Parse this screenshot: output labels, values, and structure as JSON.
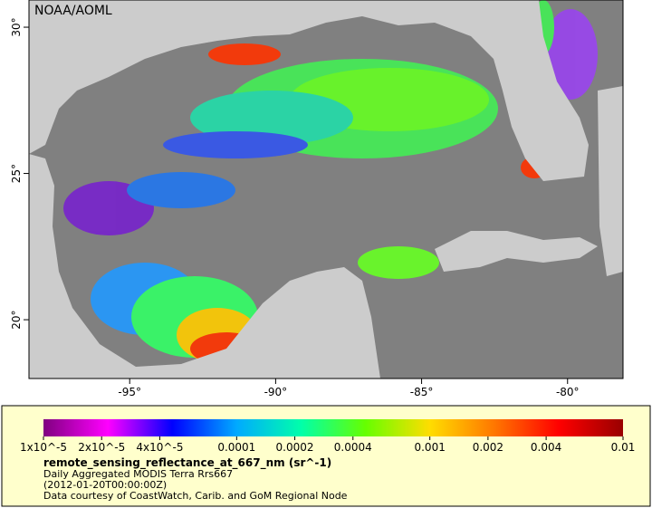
{
  "map": {
    "watermark": "NOAA/AOML",
    "xlim": [
      -98.45,
      -78.1
    ],
    "ylim": [
      17.99,
      30.93
    ],
    "xticks": [
      {
        "value": -95,
        "label": "-95°"
      },
      {
        "value": -90,
        "label": "-90°"
      },
      {
        "value": -85,
        "label": "-85°"
      },
      {
        "value": -80,
        "label": "-80°"
      }
    ],
    "yticks": [
      {
        "value": 20,
        "label": "20°"
      },
      {
        "value": 25,
        "label": "25°"
      },
      {
        "value": 30,
        "label": "30°"
      }
    ],
    "land_color": "#cccccc",
    "sea_color": "#808080"
  },
  "colorbar": {
    "scale": "log",
    "clim": [
      1e-05,
      0.01
    ],
    "colors": [
      "#800080",
      "#ff00ff",
      "#0000ff",
      "#00aaff",
      "#00ffaa",
      "#66ff00",
      "#ffdd00",
      "#ff7700",
      "#ff0000",
      "#990000"
    ],
    "ticks": [
      {
        "value": 1e-05,
        "label": "1x10^-5"
      },
      {
        "value": 2e-05,
        "label": "2x10^-5"
      },
      {
        "value": 4e-05,
        "label": "4x10^-5"
      },
      0.0001,
      0.0002,
      0.0004,
      0.001,
      0.002,
      0.004,
      0.01
    ]
  },
  "legend": {
    "variable": "remote_sensing_reflectance_at_667_nm (sr^-1)",
    "lines": [
      "Daily Aggregated MODIS Terra Rrs667",
      "(2012-01-20T00:00:00Z)",
      "Data courtesy of CoastWatch, Carib. and GoM Regional Node"
    ]
  }
}
